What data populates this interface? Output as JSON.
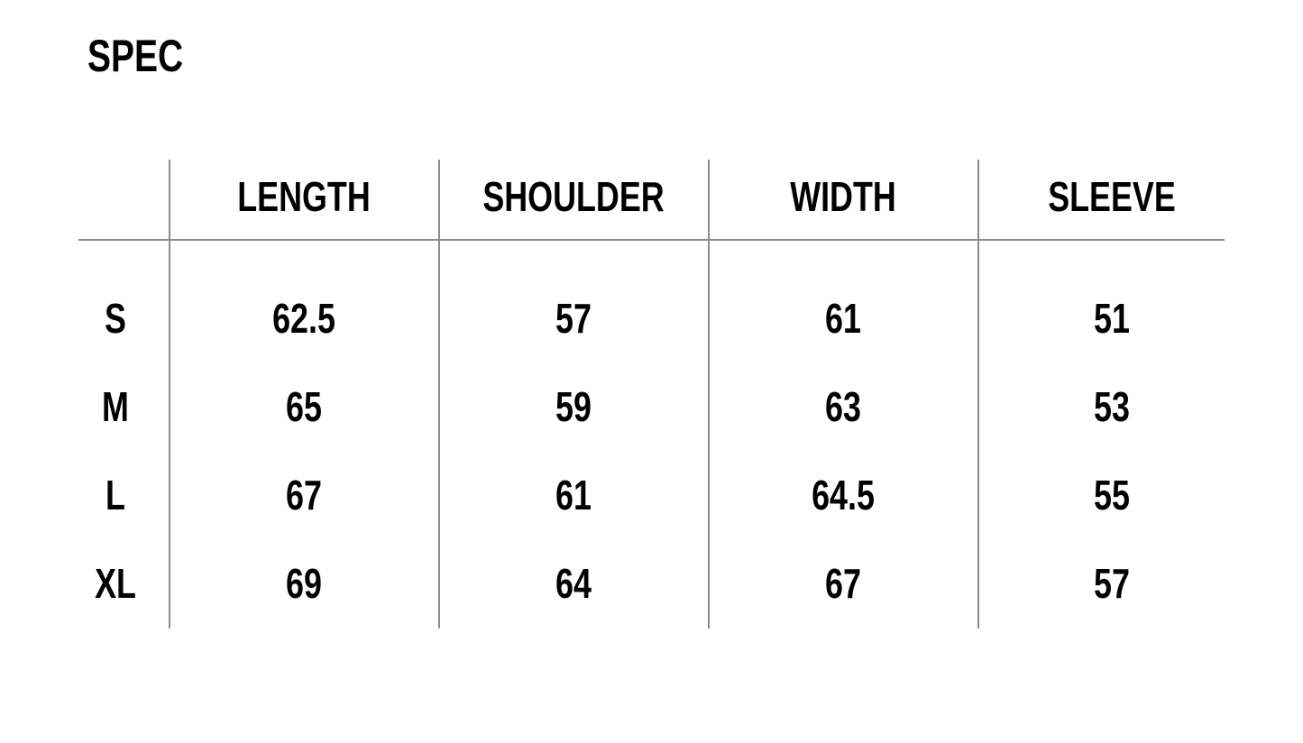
{
  "title": "SPEC",
  "columns": [
    "LENGTH",
    "SHOULDER",
    "WIDTH",
    "SLEEVE"
  ],
  "rows": [
    {
      "size": "S",
      "values": [
        "62.5",
        "57",
        "61",
        "51"
      ]
    },
    {
      "size": "M",
      "values": [
        "65",
        "59",
        "63",
        "53"
      ]
    },
    {
      "size": "L",
      "values": [
        "67",
        "61",
        "64.5",
        "55"
      ]
    },
    {
      "size": "XL",
      "values": [
        "69",
        "64",
        "67",
        "57"
      ]
    }
  ]
}
